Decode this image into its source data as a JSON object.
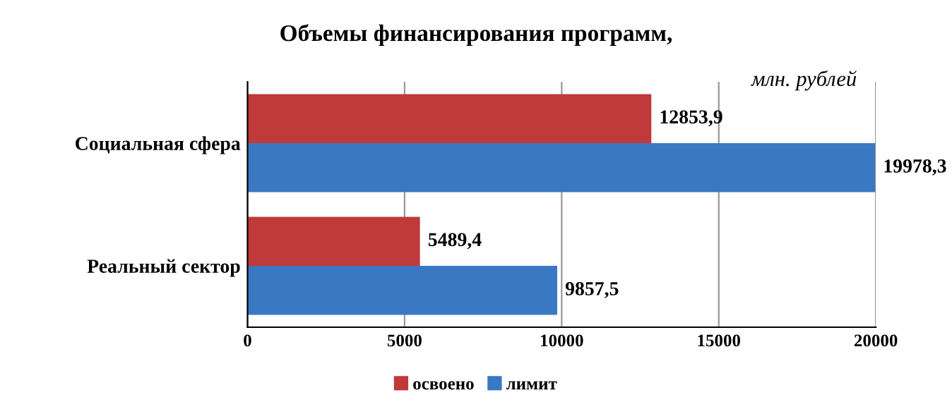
{
  "chart_data": {
    "type": "bar",
    "orientation": "horizontal",
    "title": "Объемы финансирования программ,",
    "subtitle": "млн. рублей",
    "categories": [
      "Социальная сфера",
      "Реальный сектор"
    ],
    "series": [
      {
        "name": "освоено",
        "color": "#c0393b",
        "values": [
          12853.9,
          5489.4
        ],
        "value_labels": [
          "12853,9",
          "5489,4"
        ]
      },
      {
        "name": "лимит",
        "color": "#3a78c4",
        "values": [
          19978.3,
          9857.5
        ],
        "value_labels": [
          "19978,3",
          "9857,5"
        ]
      }
    ],
    "xlim": [
      0,
      20000
    ],
    "xticks": [
      0,
      5000,
      10000,
      15000,
      20000
    ],
    "grid": "x",
    "legend": "bottom"
  }
}
